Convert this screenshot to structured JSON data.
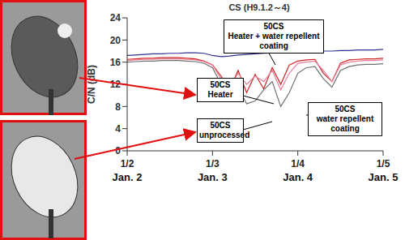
{
  "chart_data": {
    "type": "line",
    "title": "CS (H9.1.2～4)",
    "y_label": "C/N (dB)",
    "annotation": "50CS",
    "x": [
      2.0,
      2.1,
      2.2,
      2.3,
      2.4,
      2.5,
      2.6,
      2.7,
      2.8,
      2.9,
      3.0,
      3.1,
      3.2,
      3.3,
      3.4,
      3.5,
      3.6,
      3.7,
      3.8,
      3.9,
      4.0,
      4.1,
      4.2,
      4.3,
      4.4,
      4.5,
      4.6,
      4.7,
      4.8,
      4.9,
      5.0
    ],
    "xlim": [
      2,
      5
    ],
    "xticks": [
      {
        "value": 2,
        "label": "1/2"
      },
      {
        "value": 3,
        "label": "1/3"
      },
      {
        "value": 4,
        "label": "1/4"
      },
      {
        "value": 5,
        "label": "1/5"
      }
    ],
    "x_dates": [
      "Jan. 2",
      "Jan. 3",
      "Jan. 4",
      "Jan. 5"
    ],
    "ylim": [
      0,
      24
    ],
    "yticks": [
      0,
      4,
      8,
      12,
      16,
      20,
      24
    ],
    "grid": false,
    "series": [
      {
        "name": "Heater",
        "color": "#d02020",
        "values": [
          16.5,
          16.6,
          16.7,
          16.7,
          16.8,
          16.8,
          16.8,
          16.7,
          16.6,
          16.2,
          15.5,
          13.5,
          11.0,
          14.5,
          10.5,
          13.8,
          11.2,
          15.0,
          12.0,
          15.5,
          16.2,
          16.4,
          16.5,
          14.0,
          12.5,
          15.8,
          16.4,
          16.5,
          16.6,
          16.6,
          16.7
        ]
      },
      {
        "name": "unprocessed",
        "color": "#707070",
        "values": [
          16.0,
          16.1,
          16.2,
          16.2,
          16.3,
          16.3,
          16.3,
          16.2,
          16.1,
          15.8,
          15.0,
          12.0,
          10.0,
          11.5,
          8.5,
          9.0,
          11.0,
          12.5,
          8.0,
          10.5,
          14.0,
          15.0,
          15.2,
          13.0,
          11.5,
          14.5,
          15.2,
          15.5,
          15.6,
          15.6,
          15.7
        ]
      },
      {
        "name": "water repellent coating",
        "color": "#e8809a",
        "values": [
          16.3,
          16.4,
          16.5,
          16.5,
          16.6,
          16.6,
          16.6,
          16.5,
          16.4,
          16.1,
          15.5,
          13.0,
          11.5,
          14.0,
          12.0,
          13.5,
          12.5,
          14.5,
          11.0,
          14.0,
          15.8,
          16.0,
          16.2,
          14.5,
          12.5,
          15.5,
          16.0,
          16.2,
          16.3,
          16.3,
          16.4
        ]
      },
      {
        "name": "Heater + water repellent coating",
        "color": "#303090",
        "values": [
          17.2,
          17.3,
          17.4,
          17.5,
          17.5,
          17.6,
          17.6,
          17.7,
          17.7,
          17.6,
          17.2,
          17.0,
          17.1,
          17.3,
          17.4,
          17.5,
          17.6,
          17.7,
          17.8,
          17.8,
          17.9,
          17.9,
          18.0,
          18.0,
          18.0,
          18.1,
          18.1,
          18.2,
          18.2,
          18.2,
          18.3
        ]
      }
    ]
  }
}
